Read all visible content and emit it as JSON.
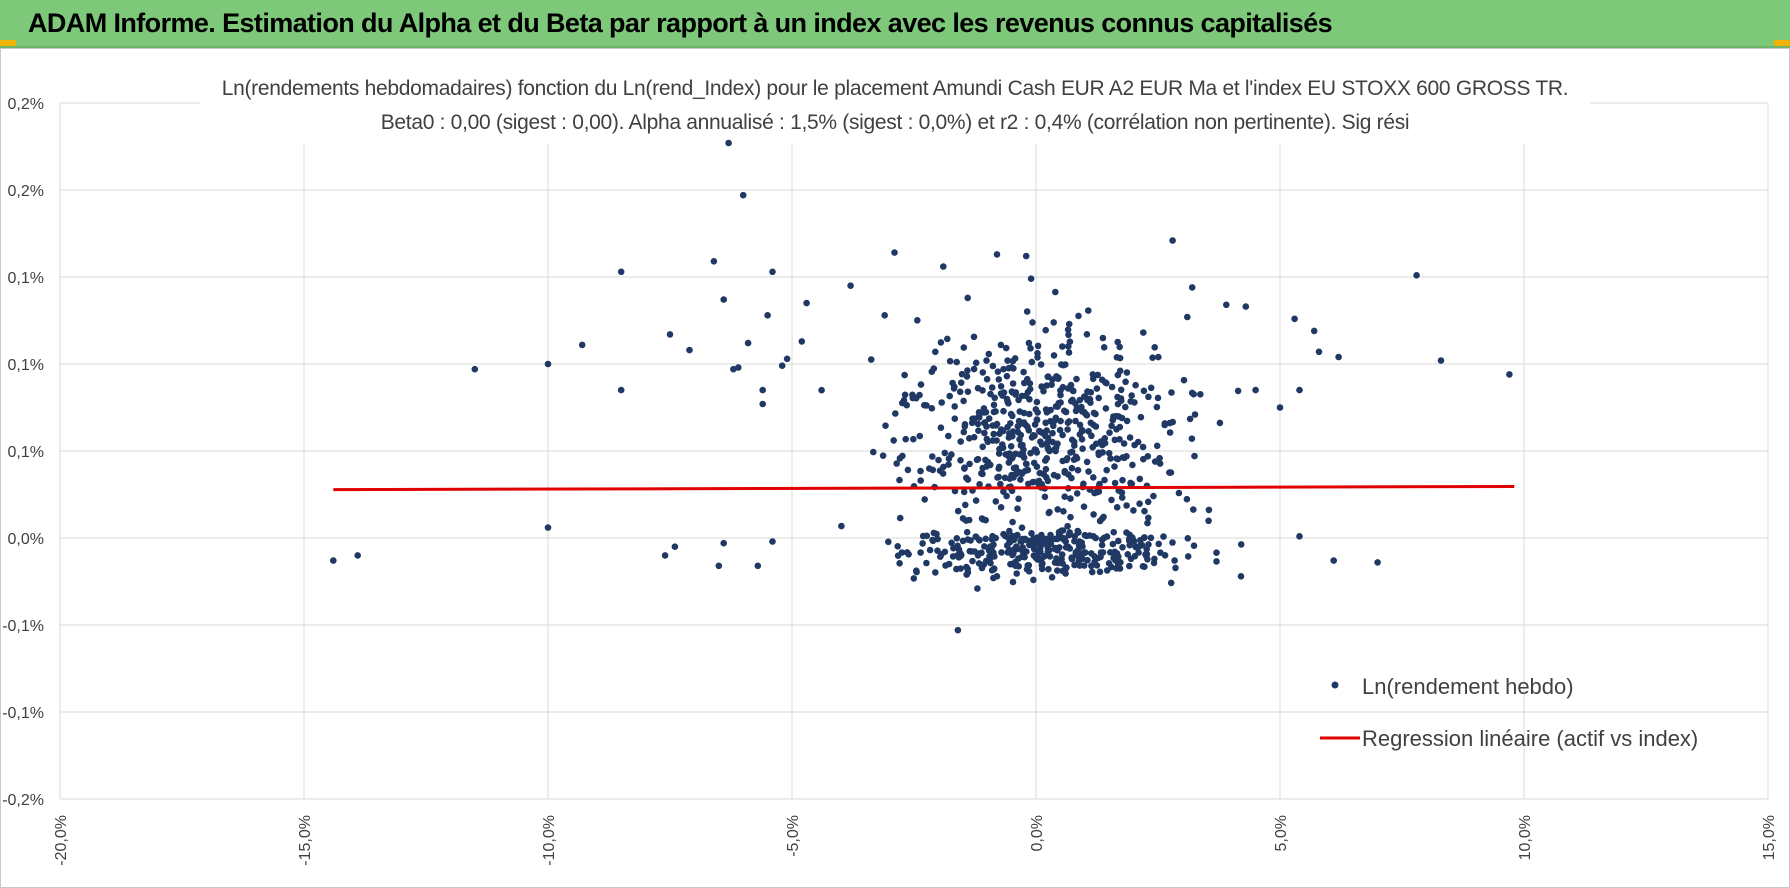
{
  "header": {
    "title": "ADAM Informe. Estimation du Alpha et du Beta par rapport à un index avec les revenus connus capitalisés"
  },
  "colors": {
    "header_bg": "#7ec87a",
    "marker": "#203864",
    "regression": "#e00000",
    "grid": "#d9d9d9",
    "accent_corner": "#f0b400"
  },
  "chart_data": {
    "type": "scatter",
    "title": "Ln(rendements hebdomadaires) fonction du Ln(rend_Index) pour le placement Amundi Cash EUR A2 EUR Ma et l'index EU STOXX 600 GROSS TR.",
    "subtitle": "Beta0 : 0,00 (sigest : 0,00).  Alpha annualisé : 1,5% (sigest : 0,0%) et r2 : 0,4% (corrélation non pertinente). Sig rési",
    "xlabel": "",
    "ylabel": "",
    "xlim": [
      -20,
      15
    ],
    "ylim": [
      -0.15,
      0.25
    ],
    "x_ticks": [
      -20,
      -15,
      -10,
      -5,
      0,
      5,
      10,
      15
    ],
    "x_tick_labels": [
      "-20,0%",
      "-15,0%",
      "-10,0%",
      "-5,0%",
      "0,0%",
      "5,0%",
      "10,0%",
      "15,0%"
    ],
    "y_ticks": [
      -0.15,
      -0.1,
      -0.05,
      0,
      0.05,
      0.1,
      0.15,
      0.2,
      0.25
    ],
    "y_tick_labels": [
      "-0,2%",
      "-0,1%",
      "-0,1%",
      "0,0%",
      "0,1%",
      "0,1%",
      "0,1%",
      "0,2%",
      "0,2%"
    ],
    "grid": true,
    "legend_position": "bottom-right",
    "series": [
      {
        "name": "Ln(rendement hebdo)",
        "kind": "scatter",
        "color": "#203864",
        "points": [
          [
            -6.3,
            0.227
          ],
          [
            -6.0,
            0.197
          ],
          [
            -6.6,
            0.159
          ],
          [
            -6.4,
            0.137
          ],
          [
            -5.4,
            0.153
          ],
          [
            -8.5,
            0.153
          ],
          [
            -9.3,
            0.111
          ],
          [
            -10.0,
            0.1
          ],
          [
            -11.5,
            0.097
          ],
          [
            -8.5,
            0.085
          ],
          [
            -14.4,
            -0.013
          ],
          [
            -13.9,
            -0.01
          ],
          [
            -10.0,
            0.006
          ],
          [
            -7.6,
            -0.01
          ],
          [
            -7.4,
            -0.005
          ],
          [
            -6.5,
            -0.016
          ],
          [
            -6.4,
            -0.003
          ],
          [
            -5.7,
            -0.016
          ],
          [
            -5.4,
            -0.002
          ],
          [
            -5.6,
            0.077
          ],
          [
            -5.6,
            0.085
          ],
          [
            -7.5,
            0.117
          ],
          [
            -7.1,
            0.108
          ],
          [
            -6.1,
            0.098
          ],
          [
            -5.9,
            0.112
          ],
          [
            -5.5,
            0.128
          ],
          [
            -5.1,
            0.103
          ],
          [
            -4.7,
            0.135
          ],
          [
            -4.8,
            0.113
          ],
          [
            -6.2,
            0.097
          ],
          [
            -5.2,
            0.099
          ],
          [
            7.8,
            0.151
          ],
          [
            8.3,
            0.102
          ],
          [
            9.7,
            0.094
          ],
          [
            7.0,
            -0.014
          ],
          [
            6.1,
            -0.013
          ],
          [
            5.7,
            0.119
          ],
          [
            5.8,
            0.107
          ],
          [
            6.2,
            0.104
          ],
          [
            5.3,
            0.126
          ],
          [
            4.5,
            0.085
          ],
          [
            5.0,
            0.075
          ],
          [
            5.4,
            0.001
          ],
          [
            5.4,
            0.085
          ],
          [
            2.8,
            0.171
          ],
          [
            -0.2,
            0.162
          ],
          [
            -0.8,
            0.163
          ],
          [
            -2.9,
            0.164
          ],
          [
            -1.9,
            0.156
          ],
          [
            -1.4,
            0.138
          ],
          [
            -0.1,
            0.149
          ],
          [
            -1.6,
            -0.053
          ],
          [
            -3.8,
            0.145
          ],
          [
            -3.1,
            0.128
          ],
          [
            -1.2,
            -0.029
          ],
          [
            -0.8,
            -0.022
          ],
          [
            4.2,
            -0.022
          ],
          [
            4.3,
            0.133
          ],
          [
            3.9,
            0.134
          ],
          [
            3.2,
            0.144
          ],
          [
            3.1,
            0.127
          ]
        ]
      },
      {
        "name": "Regression linéaire (actif vs index)",
        "kind": "line",
        "color": "#e00000",
        "points": [
          [
            -14.4,
            0.0278
          ],
          [
            9.8,
            0.0296
          ]
        ]
      }
    ],
    "cluster_note_hidden": false
  }
}
